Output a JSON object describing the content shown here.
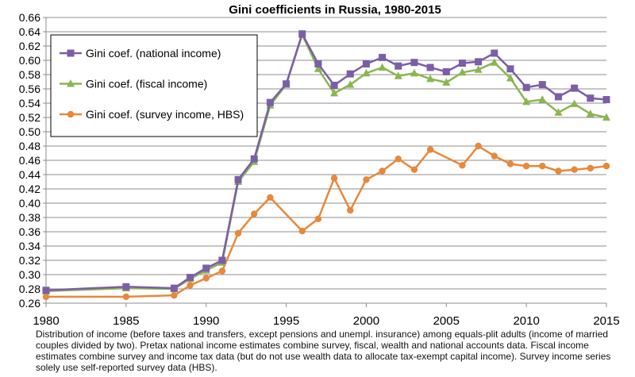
{
  "chart_data": {
    "type": "line",
    "title": "Gini coefficients in Russia, 1980-2015",
    "xlabel": "",
    "ylabel": "",
    "xlim": [
      1980,
      2015
    ],
    "ylim": [
      0.26,
      0.66
    ],
    "x_ticks": [
      1980,
      1985,
      1990,
      1995,
      2000,
      2005,
      2010,
      2015
    ],
    "y_ticks": [
      "0.26",
      "0.28",
      "0.30",
      "0.32",
      "0.34",
      "0.36",
      "0.38",
      "0.40",
      "0.42",
      "0.44",
      "0.46",
      "0.48",
      "0.50",
      "0.52",
      "0.54",
      "0.56",
      "0.58",
      "0.60",
      "0.62",
      "0.64",
      "0.66"
    ],
    "grid": true,
    "legend_position": "top-left",
    "series": [
      {
        "name": "Gini coef. (national income)",
        "color": "#7b5ea7",
        "marker": "square",
        "points": [
          [
            1980,
            0.278
          ],
          [
            1985,
            0.283
          ],
          [
            1988,
            0.281
          ],
          [
            1989,
            0.296
          ],
          [
            1990,
            0.309
          ],
          [
            1991,
            0.32
          ],
          [
            1992,
            0.433
          ],
          [
            1993,
            0.462
          ],
          [
            1994,
            0.541
          ],
          [
            1995,
            0.567
          ],
          [
            1996,
            0.637
          ],
          [
            1997,
            0.595
          ],
          [
            1998,
            0.565
          ],
          [
            1999,
            0.581
          ],
          [
            2000,
            0.595
          ],
          [
            2001,
            0.604
          ],
          [
            2002,
            0.592
          ],
          [
            2003,
            0.597
          ],
          [
            2004,
            0.59
          ],
          [
            2005,
            0.584
          ],
          [
            2006,
            0.596
          ],
          [
            2007,
            0.598
          ],
          [
            2008,
            0.61
          ],
          [
            2009,
            0.588
          ],
          [
            2010,
            0.562
          ],
          [
            2011,
            0.566
          ],
          [
            2012,
            0.549
          ],
          [
            2013,
            0.561
          ],
          [
            2014,
            0.547
          ],
          [
            2015,
            0.545
          ]
        ]
      },
      {
        "name": "Gini coef. (fiscal income)",
        "color": "#8ab650",
        "marker": "triangle",
        "points": [
          [
            1980,
            0.277
          ],
          [
            1985,
            0.281
          ],
          [
            1988,
            0.28
          ],
          [
            1989,
            0.294
          ],
          [
            1990,
            0.306
          ],
          [
            1991,
            0.317
          ],
          [
            1992,
            0.43
          ],
          [
            1993,
            0.458
          ],
          [
            1994,
            0.537
          ],
          [
            1995,
            0.566
          ],
          [
            1996,
            0.636
          ],
          [
            1997,
            0.588
          ],
          [
            1998,
            0.554
          ],
          [
            1999,
            0.566
          ],
          [
            2000,
            0.582
          ],
          [
            2001,
            0.59
          ],
          [
            2002,
            0.578
          ],
          [
            2003,
            0.582
          ],
          [
            2004,
            0.574
          ],
          [
            2005,
            0.569
          ],
          [
            2006,
            0.583
          ],
          [
            2007,
            0.587
          ],
          [
            2008,
            0.597
          ],
          [
            2009,
            0.575
          ],
          [
            2010,
            0.542
          ],
          [
            2011,
            0.545
          ],
          [
            2012,
            0.527
          ],
          [
            2013,
            0.539
          ],
          [
            2014,
            0.525
          ],
          [
            2015,
            0.52
          ]
        ]
      },
      {
        "name": "Gini coef. (survey income, HBS)",
        "color": "#e8883a",
        "marker": "circle",
        "points": [
          [
            1980,
            0.269
          ],
          [
            1985,
            0.269
          ],
          [
            1988,
            0.271
          ],
          [
            1989,
            0.285
          ],
          [
            1990,
            0.295
          ],
          [
            1991,
            0.305
          ],
          [
            1992,
            0.358
          ],
          [
            1993,
            0.385
          ],
          [
            1994,
            0.408
          ],
          [
            1996,
            0.361
          ],
          [
            1997,
            0.378
          ],
          [
            1998,
            0.435
          ],
          [
            1999,
            0.39
          ],
          [
            2000,
            0.433
          ],
          [
            2001,
            0.445
          ],
          [
            2002,
            0.462
          ],
          [
            2003,
            0.447
          ],
          [
            2004,
            0.475
          ],
          [
            2006,
            0.453
          ],
          [
            2007,
            0.48
          ],
          [
            2008,
            0.466
          ],
          [
            2009,
            0.455
          ],
          [
            2010,
            0.452
          ],
          [
            2011,
            0.452
          ],
          [
            2012,
            0.445
          ],
          [
            2013,
            0.447
          ],
          [
            2014,
            0.449
          ],
          [
            2015,
            0.452
          ]
        ]
      }
    ]
  },
  "footnote": "Distribution of income (before taxes and transfers, except pensions and unempl. insurance) among equals-plit adults (income of married couples divided by two). Pretax national income estimates combine survey, fiscal, wealth and national accounts data. Fiscal income estimates combine survey and income tax data (but do not use wealth data to allocate tax-exempt capital income). Survey income series solely use self-reported survey data (HBS)."
}
